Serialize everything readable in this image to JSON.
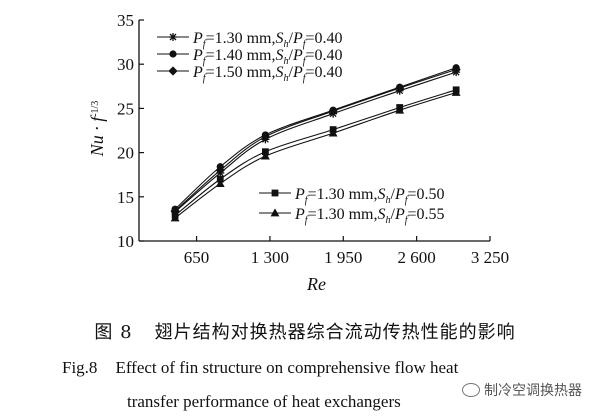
{
  "chart_data": {
    "type": "line",
    "xlabel": "Re",
    "ylabel": "Nu · f^-1/3",
    "xlim": [
      270,
      3250
    ],
    "ylim": [
      10,
      35
    ],
    "xticks": [
      650,
      1300,
      1950,
      2600,
      3250
    ],
    "xtick_labels": [
      "650",
      "1 300",
      "1 950",
      "2 600",
      "3 250"
    ],
    "yticks": [
      10,
      15,
      20,
      25,
      30,
      35
    ],
    "grid": false,
    "legend": [
      "upper-left",
      "lower-right"
    ],
    "series": [
      {
        "name": "Pf=1.30 mm,Sh/Pf=0.40",
        "marker": "asterisk",
        "x": [
          460,
          860,
          1260,
          1860,
          2450,
          2950
        ],
        "y": [
          13.3,
          17.7,
          21.5,
          24.4,
          27.0,
          29.1
        ]
      },
      {
        "name": "Pf=1.40 mm,Sh/Pf=0.40",
        "marker": "circle",
        "x": [
          460,
          860,
          1260,
          1860,
          2450,
          2950
        ],
        "y": [
          13.6,
          18.4,
          22.0,
          24.8,
          27.4,
          29.6
        ]
      },
      {
        "name": "Pf=1.50 mm,Sh/Pf=0.40",
        "marker": "diamond",
        "x": [
          460,
          860,
          1260,
          1860,
          2450,
          2950
        ],
        "y": [
          13.4,
          18.0,
          21.8,
          24.7,
          27.3,
          29.4
        ]
      },
      {
        "name": "Pf=1.30 mm,Sh/Pf=0.50",
        "marker": "square",
        "x": [
          460,
          860,
          1260,
          1860,
          2450,
          2950
        ],
        "y": [
          12.9,
          17.0,
          20.1,
          22.6,
          25.1,
          27.1
        ]
      },
      {
        "name": "Pf=1.30 mm,Sh/Pf=0.55",
        "marker": "triangle",
        "x": [
          460,
          860,
          1260,
          1860,
          2450,
          2950
        ],
        "y": [
          12.6,
          16.5,
          19.6,
          22.2,
          24.8,
          26.8
        ]
      }
    ]
  },
  "caption": {
    "cn_number": "图 8",
    "cn_text": "翅片结构对换热器综合流动传热性能的影响",
    "en_number": "Fig.8",
    "en_line1": "Effect of fin structure on comprehensive flow heat",
    "en_line2": "transfer performance of heat exchangers"
  },
  "watermark": {
    "text": "制冷空调换热器"
  }
}
